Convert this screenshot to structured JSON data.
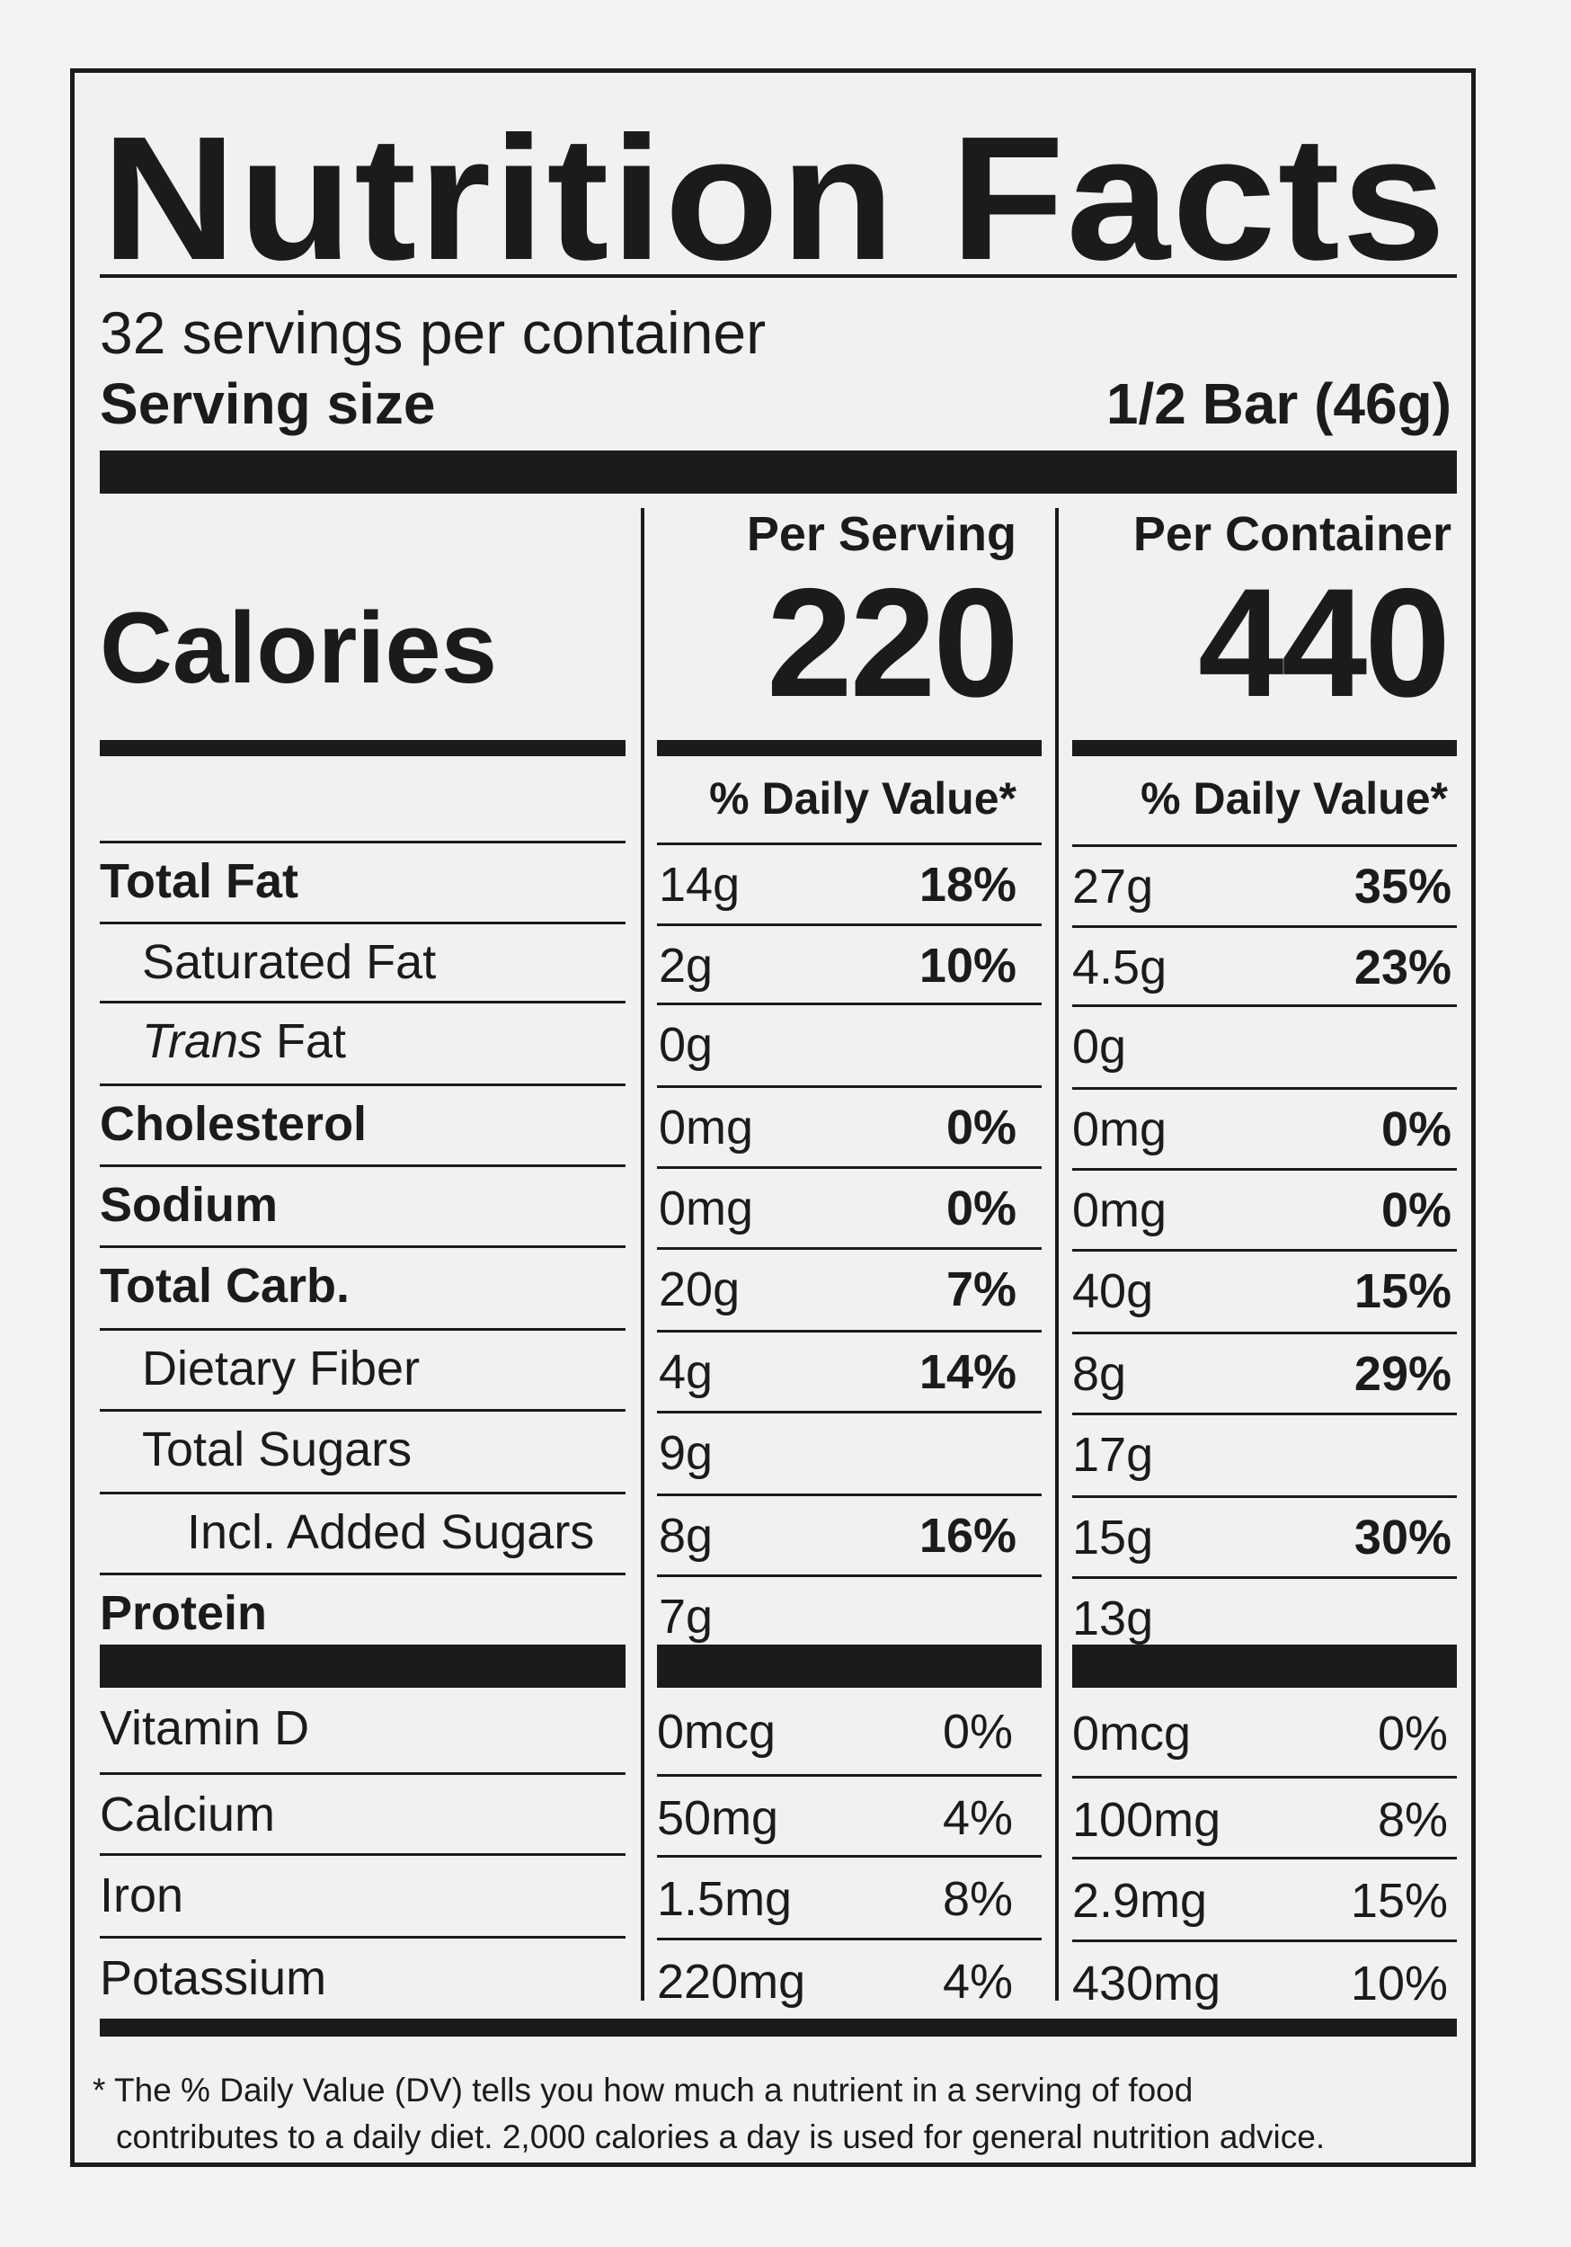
{
  "title": "Nutrition Facts",
  "servings_per_container": "32 servings per container",
  "serving_size_label": "Serving size",
  "serving_size_value": "1/2 Bar (46g)",
  "columns": {
    "per_serving": {
      "header": "Per Serving",
      "calories": "220",
      "dv_header": "% Daily Value*"
    },
    "per_container": {
      "header": "Per Container",
      "calories": "440",
      "dv_header": "% Daily Value*"
    }
  },
  "calories_label": "Calories",
  "nutrients": [
    {
      "name": "Total Fat",
      "bold": true,
      "indent": 0,
      "serving_amount": "14g",
      "serving_dv": "18%",
      "container_amount": "27g",
      "container_dv": "35%"
    },
    {
      "name": "Saturated Fat",
      "bold": false,
      "indent": 1,
      "serving_amount": "2g",
      "serving_dv": "10%",
      "container_amount": "4.5g",
      "container_dv": "23%"
    },
    {
      "name_italic": "Trans",
      "name": " Fat",
      "bold": false,
      "indent": 1,
      "serving_amount": "0g",
      "serving_dv": "",
      "container_amount": "0g",
      "container_dv": ""
    },
    {
      "name": "Cholesterol",
      "bold": true,
      "indent": 0,
      "serving_amount": "0mg",
      "serving_dv": "0%",
      "container_amount": "0mg",
      "container_dv": "0%"
    },
    {
      "name": "Sodium",
      "bold": true,
      "indent": 0,
      "serving_amount": "0mg",
      "serving_dv": "0%",
      "container_amount": "0mg",
      "container_dv": "0%"
    },
    {
      "name": "Total Carb.",
      "bold": true,
      "indent": 0,
      "serving_amount": "20g",
      "serving_dv": "7%",
      "container_amount": "40g",
      "container_dv": "15%"
    },
    {
      "name": "Dietary Fiber",
      "bold": false,
      "indent": 1,
      "serving_amount": "4g",
      "serving_dv": "14%",
      "container_amount": "8g",
      "container_dv": "29%"
    },
    {
      "name": "Total Sugars",
      "bold": false,
      "indent": 1,
      "serving_amount": "9g",
      "serving_dv": "",
      "container_amount": "17g",
      "container_dv": ""
    },
    {
      "name": "Incl. Added Sugars",
      "bold": false,
      "indent": 2,
      "serving_amount": "8g",
      "serving_dv": "16%",
      "container_amount": "15g",
      "container_dv": "30%"
    },
    {
      "name": "Protein",
      "bold": true,
      "indent": 0,
      "serving_amount": "7g",
      "serving_dv": "",
      "container_amount": "13g",
      "container_dv": ""
    }
  ],
  "vitamins": [
    {
      "name": "Vitamin D",
      "serving_amount": "0mcg",
      "serving_dv": "0%",
      "container_amount": "0mcg",
      "container_dv": "0%"
    },
    {
      "name": "Calcium",
      "serving_amount": "50mg",
      "serving_dv": "4%",
      "container_amount": "100mg",
      "container_dv": "8%"
    },
    {
      "name": "Iron",
      "serving_amount": "1.5mg",
      "serving_dv": "8%",
      "container_amount": "2.9mg",
      "container_dv": "15%"
    },
    {
      "name": "Potassium",
      "serving_amount": "220mg",
      "serving_dv": "4%",
      "container_amount": "430mg",
      "container_dv": "10%"
    }
  ],
  "footnote_line1": "* The % Daily Value (DV) tells you how much a nutrient in a serving of food",
  "footnote_line2": "contributes to a daily diet. 2,000 calories a day is used for general nutrition advice."
}
